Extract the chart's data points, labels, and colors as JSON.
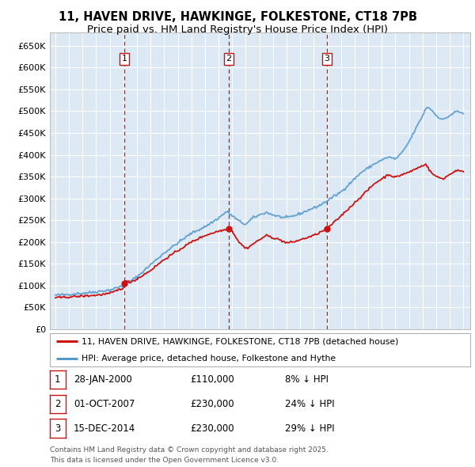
{
  "title": "11, HAVEN DRIVE, HAWKINGE, FOLKESTONE, CT18 7PB",
  "subtitle": "Price paid vs. HM Land Registry's House Price Index (HPI)",
  "title_fontsize": 10.5,
  "subtitle_fontsize": 9.5,
  "background_color": "#ffffff",
  "plot_bg_color": "#dce9f5",
  "grid_color": "#ffffff",
  "hpi_color": "#5599cc",
  "price_color": "#cc1111",
  "vline_color": "#cc1111",
  "ylim": [
    0,
    680000
  ],
  "yticks": [
    0,
    50000,
    100000,
    150000,
    200000,
    250000,
    300000,
    350000,
    400000,
    450000,
    500000,
    550000,
    600000,
    650000
  ],
  "ytick_labels": [
    "£0",
    "£50K",
    "£100K",
    "£150K",
    "£200K",
    "£250K",
    "£300K",
    "£350K",
    "£400K",
    "£450K",
    "£500K",
    "£550K",
    "£600K",
    "£650K"
  ],
  "xmin": 1994.6,
  "xmax": 2025.5,
  "transactions": [
    {
      "date_num": 2000.08,
      "price": 110000,
      "label": "1"
    },
    {
      "date_num": 2007.75,
      "price": 230000,
      "label": "2"
    },
    {
      "date_num": 2014.96,
      "price": 230000,
      "label": "3"
    }
  ],
  "legend_items": [
    {
      "label": "11, HAVEN DRIVE, HAWKINGE, FOLKESTONE, CT18 7PB (detached house)",
      "color": "#cc1111"
    },
    {
      "label": "HPI: Average price, detached house, Folkestone and Hythe",
      "color": "#5599cc"
    }
  ],
  "table_rows": [
    {
      "num": "1",
      "date": "28-JAN-2000",
      "price": "£110,000",
      "pct": "8% ↓ HPI"
    },
    {
      "num": "2",
      "date": "01-OCT-2007",
      "price": "£230,000",
      "pct": "24% ↓ HPI"
    },
    {
      "num": "3",
      "date": "15-DEC-2014",
      "price": "£230,000",
      "pct": "29% ↓ HPI"
    }
  ],
  "footnote": "Contains HM Land Registry data © Crown copyright and database right 2025.\nThis data is licensed under the Open Government Licence v3.0.",
  "hpi_anchors": [
    [
      1995.0,
      78000
    ],
    [
      1996.0,
      80000
    ],
    [
      1997.5,
      84000
    ],
    [
      1999.0,
      90000
    ],
    [
      2000.0,
      100000
    ],
    [
      2001.0,
      120000
    ],
    [
      2002.0,
      148000
    ],
    [
      2003.0,
      175000
    ],
    [
      2004.0,
      198000
    ],
    [
      2005.0,
      220000
    ],
    [
      2006.0,
      235000
    ],
    [
      2007.0,
      255000
    ],
    [
      2007.6,
      270000
    ],
    [
      2008.5,
      248000
    ],
    [
      2009.0,
      240000
    ],
    [
      2009.5,
      255000
    ],
    [
      2010.0,
      262000
    ],
    [
      2010.5,
      268000
    ],
    [
      2011.0,
      262000
    ],
    [
      2011.5,
      258000
    ],
    [
      2012.0,
      255000
    ],
    [
      2012.5,
      260000
    ],
    [
      2013.0,
      265000
    ],
    [
      2013.5,
      272000
    ],
    [
      2014.0,
      278000
    ],
    [
      2014.5,
      285000
    ],
    [
      2015.0,
      295000
    ],
    [
      2015.5,
      305000
    ],
    [
      2016.0,
      315000
    ],
    [
      2016.5,
      330000
    ],
    [
      2017.0,
      345000
    ],
    [
      2017.5,
      360000
    ],
    [
      2018.0,
      370000
    ],
    [
      2018.5,
      380000
    ],
    [
      2019.0,
      388000
    ],
    [
      2019.5,
      395000
    ],
    [
      2020.0,
      390000
    ],
    [
      2020.5,
      405000
    ],
    [
      2021.0,
      430000
    ],
    [
      2021.5,
      460000
    ],
    [
      2022.0,
      490000
    ],
    [
      2022.3,
      510000
    ],
    [
      2022.6,
      505000
    ],
    [
      2023.0,
      490000
    ],
    [
      2023.5,
      480000
    ],
    [
      2024.0,
      490000
    ],
    [
      2024.5,
      500000
    ],
    [
      2025.0,
      495000
    ]
  ],
  "price_anchors": [
    [
      1995.0,
      72000
    ],
    [
      1996.0,
      74000
    ],
    [
      1997.0,
      76000
    ],
    [
      1998.0,
      78000
    ],
    [
      1999.0,
      82000
    ],
    [
      2000.0,
      95000
    ],
    [
      2000.1,
      110000
    ],
    [
      2000.5,
      108000
    ],
    [
      2001.0,
      115000
    ],
    [
      2002.0,
      135000
    ],
    [
      2003.0,
      160000
    ],
    [
      2004.0,
      180000
    ],
    [
      2005.0,
      200000
    ],
    [
      2006.0,
      215000
    ],
    [
      2007.0,
      225000
    ],
    [
      2007.7,
      230000
    ],
    [
      2007.76,
      230000
    ],
    [
      2008.0,
      225000
    ],
    [
      2008.5,
      200000
    ],
    [
      2009.0,
      185000
    ],
    [
      2009.3,
      190000
    ],
    [
      2009.5,
      195000
    ],
    [
      2010.0,
      205000
    ],
    [
      2010.5,
      215000
    ],
    [
      2011.0,
      210000
    ],
    [
      2011.5,
      205000
    ],
    [
      2012.0,
      198000
    ],
    [
      2012.5,
      200000
    ],
    [
      2013.0,
      205000
    ],
    [
      2013.5,
      210000
    ],
    [
      2014.0,
      215000
    ],
    [
      2014.96,
      230000
    ],
    [
      2015.0,
      232000
    ],
    [
      2015.5,
      245000
    ],
    [
      2016.0,
      260000
    ],
    [
      2016.5,
      275000
    ],
    [
      2017.0,
      290000
    ],
    [
      2017.5,
      305000
    ],
    [
      2018.0,
      320000
    ],
    [
      2018.5,
      335000
    ],
    [
      2019.0,
      345000
    ],
    [
      2019.5,
      355000
    ],
    [
      2020.0,
      348000
    ],
    [
      2020.5,
      355000
    ],
    [
      2021.0,
      360000
    ],
    [
      2021.5,
      368000
    ],
    [
      2022.0,
      375000
    ],
    [
      2022.2,
      380000
    ],
    [
      2022.4,
      370000
    ],
    [
      2022.6,
      360000
    ],
    [
      2023.0,
      350000
    ],
    [
      2023.5,
      345000
    ],
    [
      2024.0,
      355000
    ],
    [
      2024.5,
      365000
    ],
    [
      2025.0,
      360000
    ]
  ]
}
